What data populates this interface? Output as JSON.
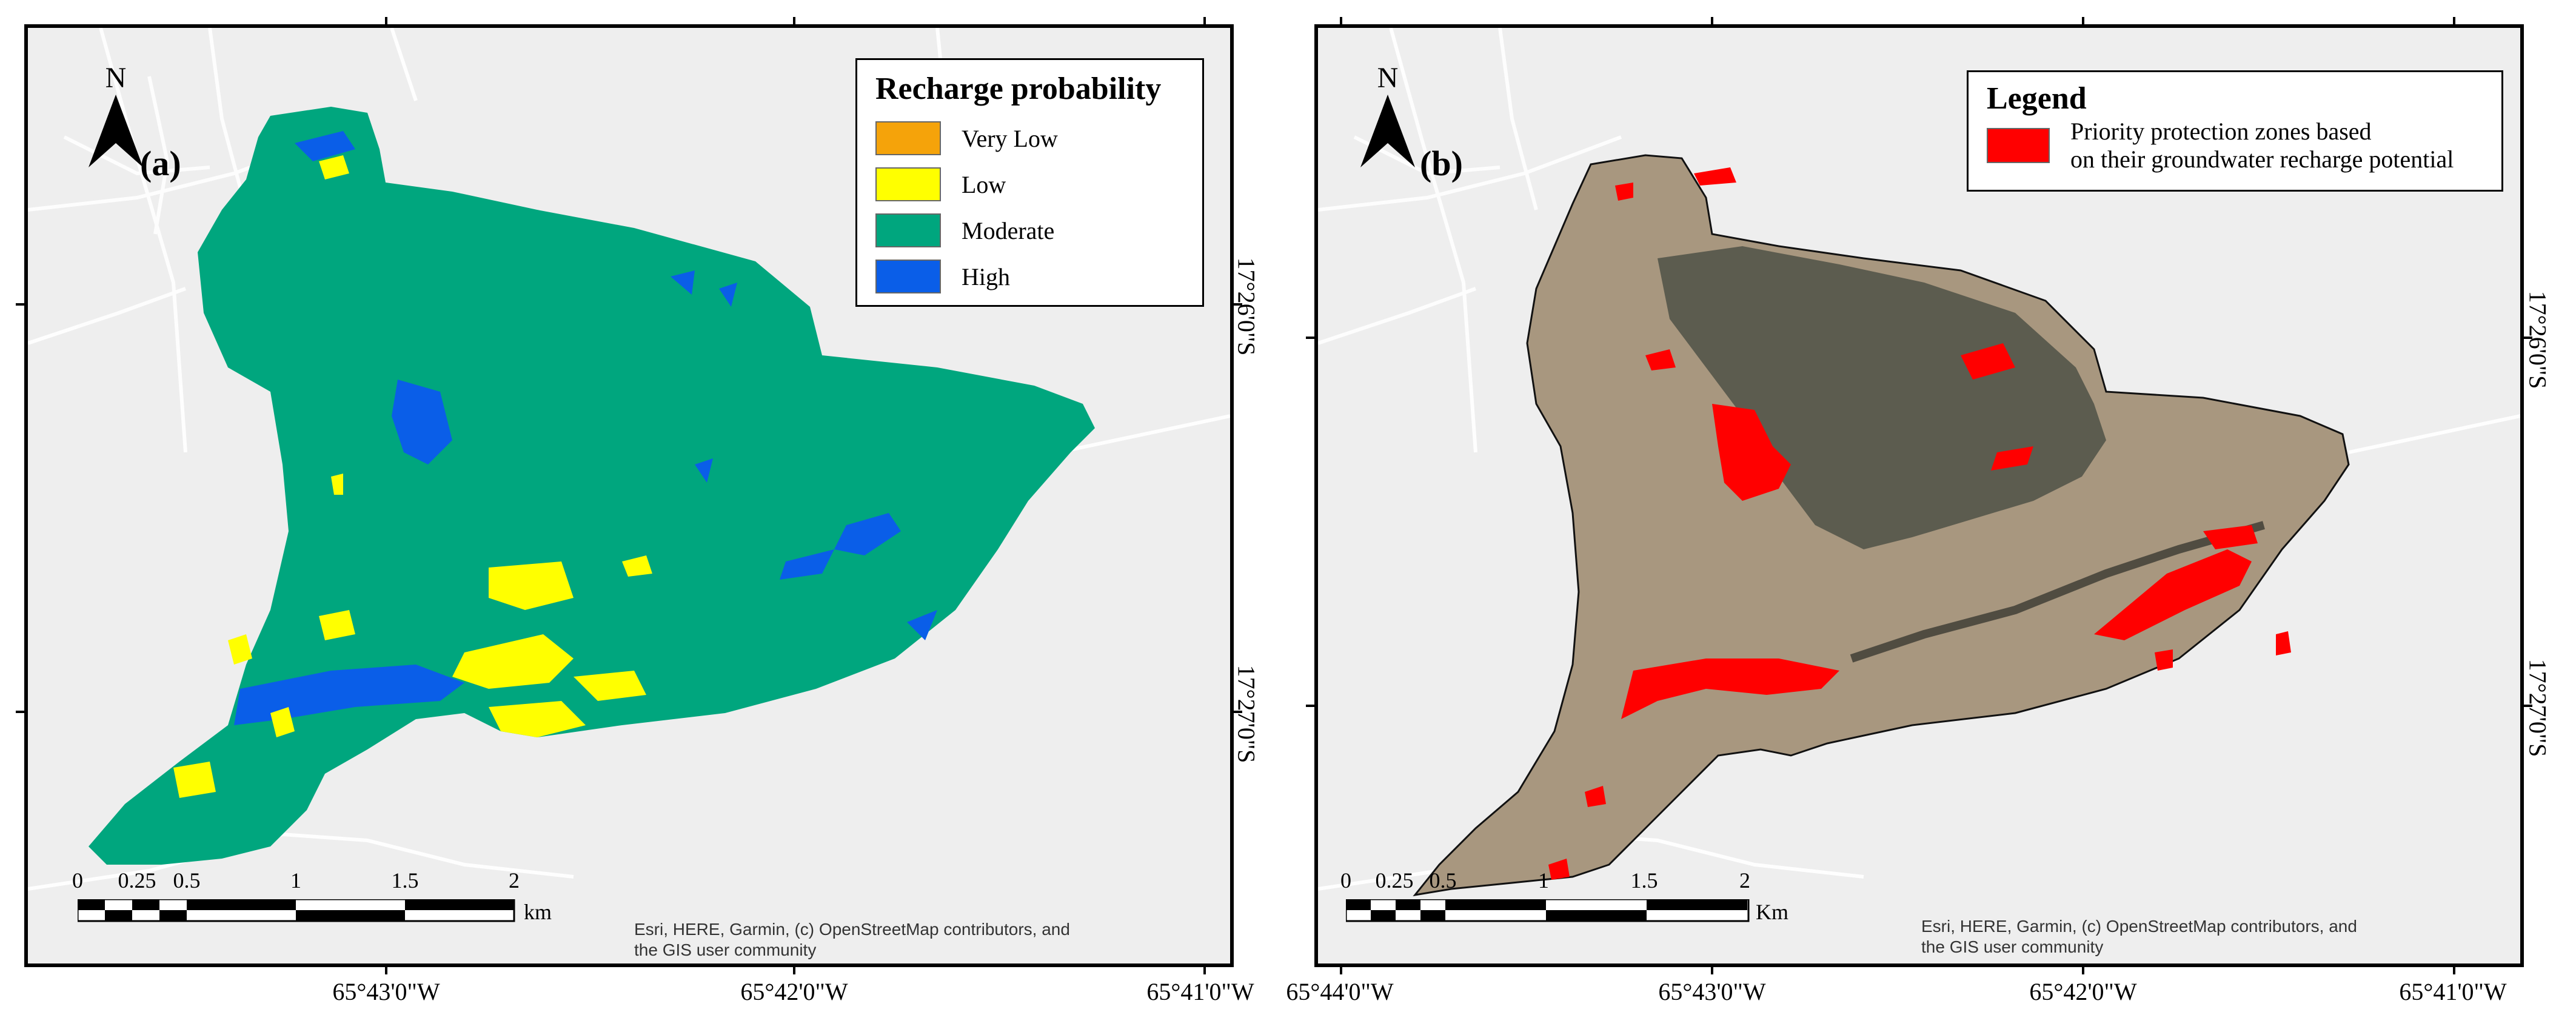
{
  "panel_a": {
    "label": "(a)",
    "north": "N",
    "legend": {
      "title": "Recharge probability",
      "items": [
        {
          "label": "Very Low",
          "color": "#f5a30a"
        },
        {
          "label": "Low",
          "color": "#ffff00"
        },
        {
          "label": "Moderate",
          "color": "#00a67e"
        },
        {
          "label": "High",
          "color": "#0a5ee8"
        }
      ]
    },
    "scale": {
      "ticks": [
        "0",
        "0.25",
        "0.5",
        "1",
        "1.5",
        "2"
      ],
      "unit": "km"
    },
    "credit_line1": "Esri, HERE, Garmin, (c) OpenStreetMap contributors, and",
    "credit_line2": "the GIS user community"
  },
  "panel_b": {
    "label": "(b)",
    "north": "N",
    "legend": {
      "title": "Legend",
      "item_line1": "Priority protection zones based",
      "item_line2": "on their groundwater recharge potential",
      "color": "#ff0000"
    },
    "scale": {
      "ticks": [
        "0",
        "0.25",
        "0.5",
        "1",
        "1.5",
        "2"
      ],
      "unit": "Km"
    },
    "credit_line1": "Esri, HERE, Garmin, (c) OpenStreetMap contributors, and",
    "credit_line2": "the GIS user community"
  },
  "lon_labels_a": [
    "65°43'0\"W",
    "65°42'0\"W",
    "65°41'0\"W"
  ],
  "lon_labels_b": [
    "65°44'0\"W",
    "65°43'0\"W",
    "65°42'0\"W",
    "65°41'0\"W"
  ],
  "lat_labels_a": [
    "17°26'0\"S",
    "17°27'0\"S"
  ],
  "lat_labels_b": [
    "17°26'0\"S",
    "17°27'0\"S"
  ]
}
